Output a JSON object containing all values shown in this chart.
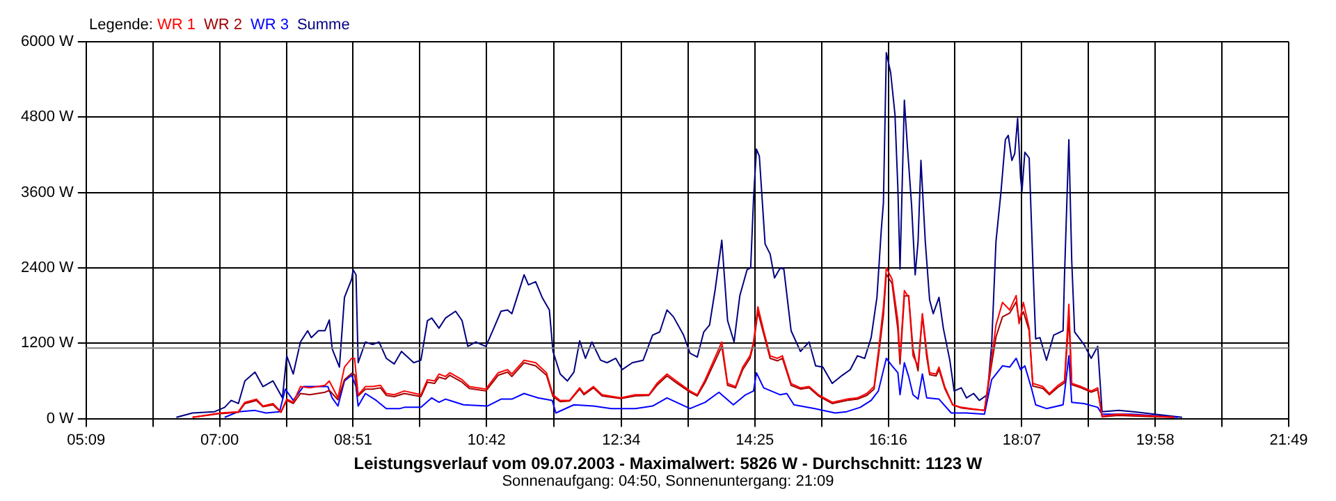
{
  "chart_data": {
    "type": "line",
    "title": "Leistungsverlauf vom 09.07.2003 - Maximalwert: 5826 W - Durchschnitt: 1123 W",
    "subtitle": "Sonnenaufgang: 04:50, Sonnenuntergang: 21:09",
    "legend_title": "Legende:",
    "legend": "top left",
    "grid": true,
    "marker": "none",
    "line_style": "solid",
    "xlim": [
      5.15,
      21.8167
    ],
    "xticks": [
      {
        "value": 5.15,
        "label": "05:09"
      },
      {
        "value": 6.075,
        "label": null
      },
      {
        "value": 7.0,
        "label": "07:00"
      },
      {
        "value": 7.925,
        "label": null
      },
      {
        "value": 8.85,
        "label": "08:51"
      },
      {
        "value": 9.775,
        "label": null
      },
      {
        "value": 10.7,
        "label": "10:42"
      },
      {
        "value": 11.633,
        "label": null
      },
      {
        "value": 12.5667,
        "label": "12:34"
      },
      {
        "value": 13.492,
        "label": null
      },
      {
        "value": 14.4167,
        "label": "14:25"
      },
      {
        "value": 15.342,
        "label": null
      },
      {
        "value": 16.2667,
        "label": "16:16"
      },
      {
        "value": 17.192,
        "label": null
      },
      {
        "value": 18.1167,
        "label": "18:07"
      },
      {
        "value": 19.042,
        "label": null
      },
      {
        "value": 19.9667,
        "label": "19:58"
      },
      {
        "value": 20.892,
        "label": null
      },
      {
        "value": 21.8167,
        "label": "21:49"
      }
    ],
    "ylim": [
      0,
      6000
    ],
    "yticks": [
      {
        "value": 0,
        "label": "0 W"
      },
      {
        "value": 1200,
        "label": "1200 W"
      },
      {
        "value": 2400,
        "label": "2400 W"
      },
      {
        "value": 3600,
        "label": "3600 W"
      },
      {
        "value": 4800,
        "label": "4800 W"
      },
      {
        "value": 6000,
        "label": "6000 W"
      }
    ],
    "ref_lines": [
      {
        "axis": "y",
        "value": 1123,
        "color": "#808080"
      }
    ],
    "series": [
      {
        "name": "WR 1",
        "color": "#ff0000",
        "x": [
          6.625,
          7.01,
          7.26,
          7.35,
          7.51,
          7.6,
          7.74,
          7.85,
          7.93,
          8.02,
          8.12,
          8.25,
          8.46,
          8.52,
          8.64,
          8.73,
          8.83,
          8.87,
          8.92,
          9.02,
          9.12,
          9.23,
          9.31,
          9.42,
          9.56,
          9.79,
          9.88,
          9.98,
          10.04,
          10.13,
          10.19,
          10.36,
          10.46,
          10.69,
          10.86,
          10.99,
          11.05,
          11.22,
          11.38,
          11.53,
          11.62,
          11.72,
          11.85,
          11.99,
          12.05,
          12.18,
          12.3,
          12.56,
          12.76,
          12.95,
          13.06,
          13.2,
          13.33,
          13.52,
          13.62,
          13.73,
          13.96,
          14.04,
          14.15,
          14.25,
          14.35,
          14.4,
          14.46,
          14.54,
          14.63,
          14.73,
          14.8,
          14.92,
          15.05,
          15.17,
          15.3,
          15.49,
          15.69,
          15.84,
          15.97,
          16.07,
          16.13,
          16.2,
          16.24,
          16.32,
          16.4,
          16.43,
          16.49,
          16.55,
          16.61,
          16.68,
          16.74,
          16.8,
          16.84,
          16.93,
          16.97,
          17.05,
          17.16,
          17.28,
          17.41,
          17.6,
          17.7,
          17.76,
          17.85,
          17.95,
          18.04,
          18.08,
          18.14,
          18.22,
          18.27,
          18.41,
          18.5,
          18.62,
          18.71,
          18.77,
          18.81,
          18.94,
          19.08,
          19.17,
          19.23,
          19.46,
          19.96,
          20.23
        ],
        "values": [
          20,
          90,
          110,
          260,
          310,
          200,
          240,
          110,
          310,
          260,
          510,
          490,
          530,
          600,
          330,
          820,
          960,
          960,
          380,
          510,
          510,
          530,
          400,
          380,
          440,
          380,
          620,
          600,
          710,
          670,
          730,
          620,
          510,
          470,
          730,
          780,
          710,
          930,
          890,
          730,
          380,
          290,
          290,
          490,
          400,
          510,
          380,
          330,
          380,
          380,
          560,
          710,
          600,
          440,
          380,
          620,
          1220,
          560,
          510,
          820,
          1000,
          1220,
          1780,
          1400,
          1000,
          960,
          1000,
          560,
          490,
          510,
          380,
          260,
          310,
          330,
          400,
          510,
          1070,
          1780,
          2400,
          2220,
          1560,
          960,
          2040,
          1930,
          1000,
          840,
          1670,
          1070,
          730,
          710,
          820,
          510,
          220,
          180,
          160,
          130,
          960,
          1490,
          1850,
          1730,
          1960,
          1510,
          1850,
          1440,
          560,
          510,
          400,
          530,
          600,
          1820,
          560,
          510,
          440,
          490,
          40,
          70,
          40,
          20
        ]
      },
      {
        "name": "WR 2",
        "color": "#a00000",
        "x": [
          6.625,
          7.01,
          7.26,
          7.35,
          7.51,
          7.6,
          7.74,
          7.85,
          7.93,
          8.02,
          8.12,
          8.25,
          8.46,
          8.52,
          8.64,
          8.73,
          8.83,
          8.87,
          8.92,
          9.02,
          9.12,
          9.23,
          9.31,
          9.42,
          9.56,
          9.79,
          9.88,
          9.98,
          10.04,
          10.13,
          10.19,
          10.36,
          10.46,
          10.69,
          10.86,
          10.99,
          11.05,
          11.22,
          11.38,
          11.53,
          11.62,
          11.72,
          11.85,
          11.99,
          12.05,
          12.18,
          12.3,
          12.56,
          12.76,
          12.95,
          13.06,
          13.2,
          13.33,
          13.52,
          13.62,
          13.73,
          13.96,
          14.04,
          14.15,
          14.25,
          14.35,
          14.4,
          14.46,
          14.54,
          14.63,
          14.73,
          14.8,
          14.92,
          15.05,
          15.17,
          15.3,
          15.49,
          15.69,
          15.84,
          15.97,
          16.07,
          16.13,
          16.2,
          16.24,
          16.32,
          16.4,
          16.43,
          16.49,
          16.55,
          16.61,
          16.68,
          16.74,
          16.8,
          16.84,
          16.93,
          16.97,
          17.05,
          17.16,
          17.28,
          17.41,
          17.6,
          17.7,
          17.76,
          17.85,
          17.95,
          18.04,
          18.08,
          18.14,
          18.22,
          18.27,
          18.41,
          18.5,
          18.62,
          18.71,
          18.77,
          18.81,
          18.94,
          19.08,
          19.17,
          19.23,
          19.46,
          19.96,
          20.23
        ],
        "values": [
          20,
          80,
          100,
          240,
          290,
          190,
          220,
          100,
          290,
          240,
          400,
          380,
          420,
          450,
          300,
          620,
          720,
          700,
          360,
          470,
          470,
          490,
          370,
          350,
          400,
          350,
          580,
          560,
          660,
          630,
          690,
          580,
          480,
          440,
          690,
          740,
          670,
          890,
          840,
          690,
          350,
          270,
          280,
          470,
          380,
          490,
          360,
          320,
          360,
          370,
          530,
          680,
          570,
          420,
          360,
          580,
          1150,
          530,
          490,
          780,
          960,
          1180,
          1700,
          1350,
          960,
          920,
          960,
          530,
          470,
          490,
          360,
          240,
          290,
          310,
          370,
          470,
          980,
          1650,
          2300,
          2150,
          1420,
          870,
          1950,
          1960,
          1100,
          760,
          1650,
          980,
          700,
          680,
          780,
          480,
          220,
          170,
          150,
          130,
          870,
          1300,
          1620,
          1680,
          1860,
          1560,
          1700,
          1400,
          520,
          480,
          380,
          500,
          570,
          1600,
          540,
          490,
          420,
          460,
          30,
          50,
          30,
          20
        ]
      },
      {
        "name": "WR 3",
        "color": "#0000ff",
        "x": [
          7.07,
          7.26,
          7.49,
          7.64,
          7.83,
          7.91,
          8.02,
          8.16,
          8.35,
          8.5,
          8.56,
          8.64,
          8.73,
          8.83,
          8.89,
          8.92,
          9.02,
          9.17,
          9.31,
          9.5,
          9.56,
          9.79,
          9.94,
          10.04,
          10.13,
          10.19,
          10.38,
          10.71,
          10.9,
          11.05,
          11.22,
          11.41,
          11.61,
          11.66,
          11.91,
          12.18,
          12.43,
          12.76,
          13.0,
          13.2,
          13.52,
          13.73,
          13.92,
          14.12,
          14.29,
          14.4,
          14.44,
          14.54,
          14.77,
          14.86,
          14.96,
          15.25,
          15.53,
          15.69,
          15.88,
          16.03,
          16.13,
          16.24,
          16.32,
          16.4,
          16.43,
          16.49,
          16.55,
          16.61,
          16.68,
          16.74,
          16.8,
          16.97,
          17.14,
          17.35,
          17.6,
          17.7,
          17.85,
          17.95,
          18.04,
          18.1,
          18.16,
          18.25,
          18.31,
          18.46,
          18.69,
          18.77,
          18.81,
          18.98,
          19.17,
          19.23,
          19.65,
          20.28
        ],
        "values": [
          20,
          110,
          130,
          90,
          110,
          470,
          290,
          510,
          510,
          510,
          330,
          200,
          600,
          690,
          510,
          200,
          400,
          290,
          160,
          160,
          180,
          180,
          330,
          260,
          310,
          290,
          220,
          200,
          310,
          310,
          400,
          330,
          290,
          90,
          220,
          200,
          160,
          160,
          200,
          330,
          160,
          260,
          420,
          220,
          380,
          440,
          730,
          490,
          380,
          400,
          220,
          160,
          90,
          110,
          180,
          290,
          440,
          960,
          840,
          730,
          380,
          890,
          670,
          380,
          310,
          710,
          330,
          310,
          90,
          90,
          70,
          620,
          840,
          820,
          960,
          780,
          840,
          490,
          220,
          160,
          220,
          1000,
          260,
          240,
          180,
          70,
          70,
          20
        ]
      },
      {
        "name": "Summe",
        "color": "#000080",
        "x": [
          6.4,
          6.625,
          6.93,
          7.07,
          7.16,
          7.26,
          7.35,
          7.49,
          7.6,
          7.74,
          7.87,
          7.93,
          8.02,
          8.12,
          8.22,
          8.27,
          8.37,
          8.46,
          8.52,
          8.56,
          8.66,
          8.73,
          8.83,
          8.85,
          8.89,
          8.92,
          9.02,
          9.12,
          9.21,
          9.31,
          9.42,
          9.52,
          9.69,
          9.79,
          9.88,
          9.94,
          10.04,
          10.13,
          10.27,
          10.36,
          10.44,
          10.55,
          10.69,
          10.8,
          10.9,
          10.99,
          11.05,
          11.22,
          11.28,
          11.38,
          11.47,
          11.57,
          11.62,
          11.72,
          11.82,
          11.91,
          11.99,
          12.07,
          12.16,
          12.28,
          12.37,
          12.49,
          12.58,
          12.72,
          12.87,
          13.0,
          13.1,
          13.2,
          13.29,
          13.43,
          13.52,
          13.62,
          13.71,
          13.79,
          13.87,
          13.96,
          14.04,
          14.13,
          14.21,
          14.31,
          14.36,
          14.4,
          14.44,
          14.48,
          14.56,
          14.63,
          14.69,
          14.77,
          14.82,
          14.92,
          15.05,
          15.17,
          15.26,
          15.36,
          15.49,
          15.63,
          15.74,
          15.84,
          15.94,
          16.03,
          16.11,
          16.17,
          16.2,
          16.24,
          16.3,
          16.36,
          16.4,
          16.43,
          16.49,
          16.53,
          16.59,
          16.64,
          16.68,
          16.72,
          16.78,
          16.84,
          16.89,
          16.97,
          17.03,
          17.12,
          17.18,
          17.28,
          17.35,
          17.45,
          17.53,
          17.64,
          17.7,
          17.76,
          17.83,
          17.89,
          17.93,
          17.98,
          18.02,
          18.06,
          18.1,
          18.12,
          18.16,
          18.22,
          18.27,
          18.31,
          18.37,
          18.46,
          18.56,
          18.69,
          18.71,
          18.77,
          18.81,
          18.85,
          18.98,
          19.08,
          19.17,
          19.23,
          19.46,
          19.67,
          19.96,
          20.34
        ],
        "values": [
          20,
          90,
          110,
          180,
          290,
          240,
          600,
          740,
          510,
          600,
          330,
          1000,
          710,
          1220,
          1400,
          1290,
          1400,
          1400,
          1570,
          1110,
          820,
          1930,
          2220,
          2370,
          2290,
          890,
          1220,
          1180,
          1220,
          960,
          870,
          1070,
          890,
          930,
          1560,
          1600,
          1440,
          1600,
          1710,
          1560,
          1150,
          1220,
          1150,
          1440,
          1710,
          1730,
          1670,
          2290,
          2130,
          2180,
          1930,
          1730,
          1070,
          710,
          600,
          740,
          1240,
          960,
          1220,
          930,
          890,
          960,
          780,
          890,
          930,
          1330,
          1380,
          1730,
          1620,
          1330,
          1040,
          980,
          1380,
          1490,
          2070,
          2840,
          1560,
          1220,
          1960,
          2370,
          2400,
          3510,
          4290,
          4180,
          2780,
          2620,
          2240,
          2400,
          2380,
          1400,
          1070,
          1220,
          840,
          820,
          560,
          690,
          780,
          1000,
          960,
          1290,
          1930,
          3000,
          3440,
          5826,
          5510,
          4840,
          3670,
          2380,
          5070,
          4370,
          3400,
          2290,
          2820,
          4110,
          2820,
          1890,
          1670,
          1930,
          1440,
          930,
          440,
          490,
          330,
          400,
          290,
          380,
          1180,
          2820,
          3620,
          4440,
          4510,
          4110,
          4220,
          4780,
          3840,
          3620,
          4240,
          4150,
          2490,
          1270,
          1290,
          930,
          1330,
          1400,
          2290,
          4440,
          2510,
          1380,
          1180,
          960,
          1150,
          110,
          130,
          110,
          70,
          20
        ]
      }
    ]
  }
}
